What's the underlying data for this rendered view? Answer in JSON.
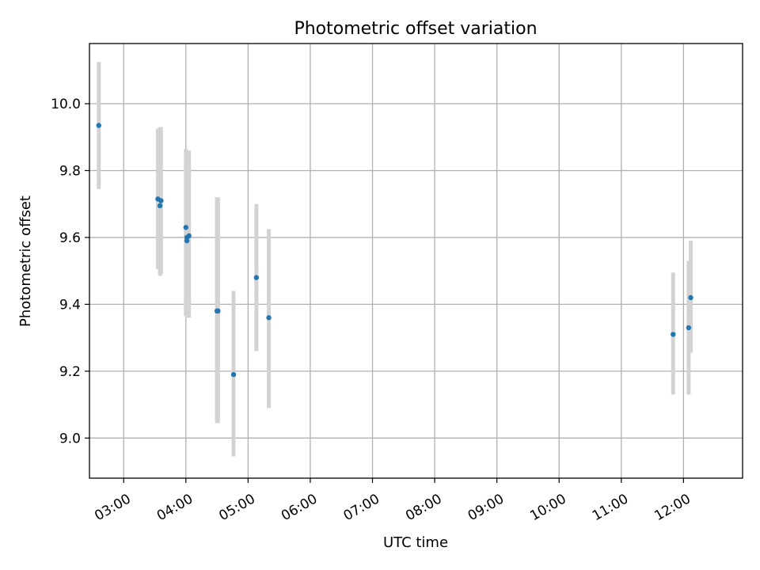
{
  "chart_data": {
    "type": "scatter",
    "title": "Photometric offset variation",
    "xlabel": "UTC time",
    "ylabel": "Photometric offset",
    "x_axis_kind": "time",
    "xlim": [
      "02:27",
      "12:57"
    ],
    "ylim": [
      8.88,
      10.18
    ],
    "x_ticks": [
      "03:00",
      "04:00",
      "05:00",
      "06:00",
      "07:00",
      "08:00",
      "09:00",
      "10:00",
      "11:00",
      "12:00"
    ],
    "y_ticks": [
      "9.0",
      "9.2",
      "9.4",
      "9.6",
      "9.8",
      "10.0"
    ],
    "grid": true,
    "legend": "none",
    "marker_color": "#1f77b4",
    "errorbar_color": "#d3d3d3",
    "points": [
      {
        "time": "02:36",
        "y": 9.935,
        "ylow": 9.745,
        "yhigh": 10.125
      },
      {
        "time": "03:33",
        "y": 9.715,
        "ylow": 9.505,
        "yhigh": 9.925
      },
      {
        "time": "03:35",
        "y": 9.695,
        "ylow": 9.485,
        "yhigh": 9.93
      },
      {
        "time": "03:36",
        "y": 9.71,
        "ylow": 9.49,
        "yhigh": 9.93
      },
      {
        "time": "04:00",
        "y": 9.63,
        "ylow": 9.365,
        "yhigh": 9.865
      },
      {
        "time": "04:01",
        "y": 9.6,
        "ylow": 9.365,
        "yhigh": 9.86
      },
      {
        "time": "04:01",
        "y": 9.59,
        "ylow": 9.36,
        "yhigh": 9.86
      },
      {
        "time": "04:03",
        "y": 9.605,
        "ylow": 9.36,
        "yhigh": 9.86
      },
      {
        "time": "04:30",
        "y": 9.38,
        "ylow": 9.045,
        "yhigh": 9.72
      },
      {
        "time": "04:31",
        "y": 9.38,
        "ylow": 9.045,
        "yhigh": 9.72
      },
      {
        "time": "04:46",
        "y": 9.19,
        "ylow": 8.945,
        "yhigh": 9.44
      },
      {
        "time": "05:08",
        "y": 9.48,
        "ylow": 9.26,
        "yhigh": 9.7
      },
      {
        "time": "05:20",
        "y": 9.36,
        "ylow": 9.09,
        "yhigh": 9.625
      },
      {
        "time": "11:50",
        "y": 9.31,
        "ylow": 9.13,
        "yhigh": 9.495
      },
      {
        "time": "12:05",
        "y": 9.33,
        "ylow": 9.13,
        "yhigh": 9.53
      },
      {
        "time": "12:07",
        "y": 9.42,
        "ylow": 9.255,
        "yhigh": 9.59
      }
    ]
  }
}
